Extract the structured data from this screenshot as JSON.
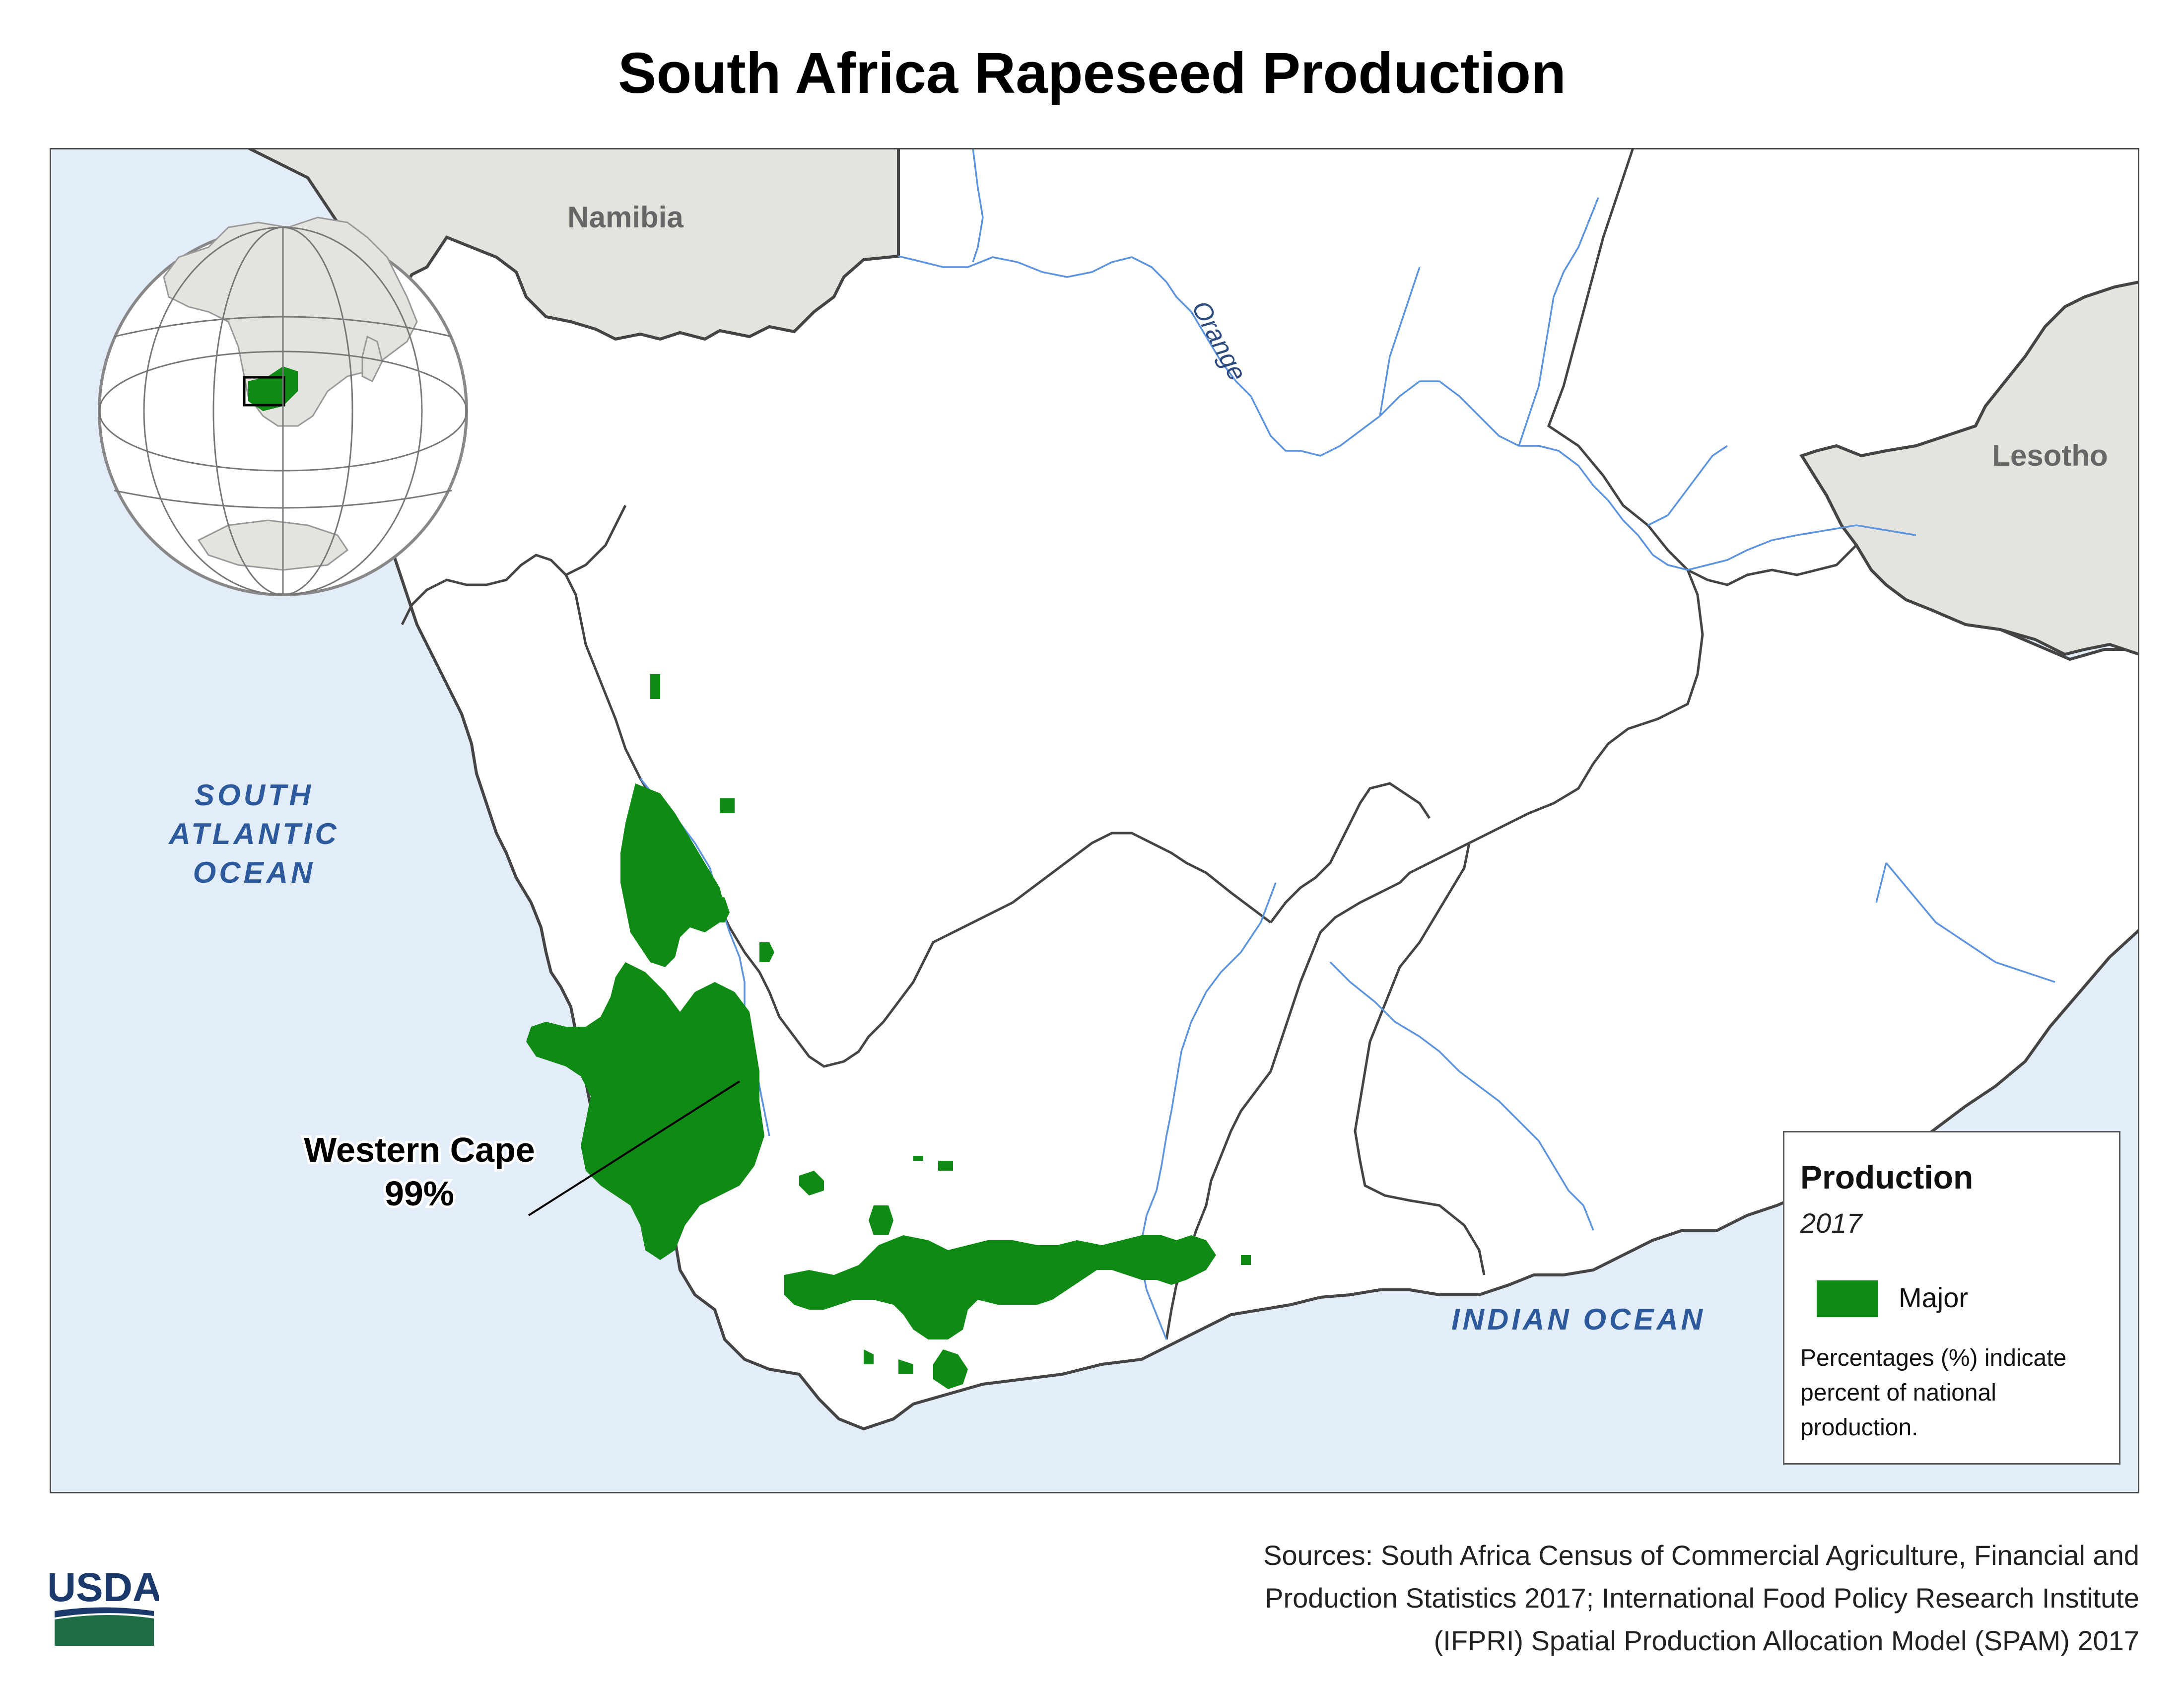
{
  "title": "South Africa Rapeseed Production",
  "labels": {
    "namibia": "Namibia",
    "lesotho": "Lesotho",
    "river": "Orange",
    "ocean_west_1": "SOUTH",
    "ocean_west_2": "ATLANTIC",
    "ocean_west_3": "OCEAN",
    "ocean_east": "INDIAN OCEAN"
  },
  "callout": {
    "region": "Western Cape",
    "percent": "99%"
  },
  "legend": {
    "title": "Production",
    "year": "2017",
    "category": "Major",
    "note": "Percentages (%) indicate percent of national production."
  },
  "sources": {
    "line1": "Sources: South Africa Census of Commercial Agriculture, Financial and",
    "line2": "Production Statistics 2017; International Food Policy Research Institute",
    "line3": "(IFPRI) Spatial Production Allocation Model (SPAM) 2017"
  },
  "logo": {
    "text": "USDA"
  },
  "colors": {
    "ocean": "#e3edf9",
    "neighbor": "#e4e3de",
    "land": "#ffffff",
    "production": "#0f8a15",
    "river": "#5b93dd",
    "border": "#444444",
    "ocean_label": "#2c5a9c"
  }
}
